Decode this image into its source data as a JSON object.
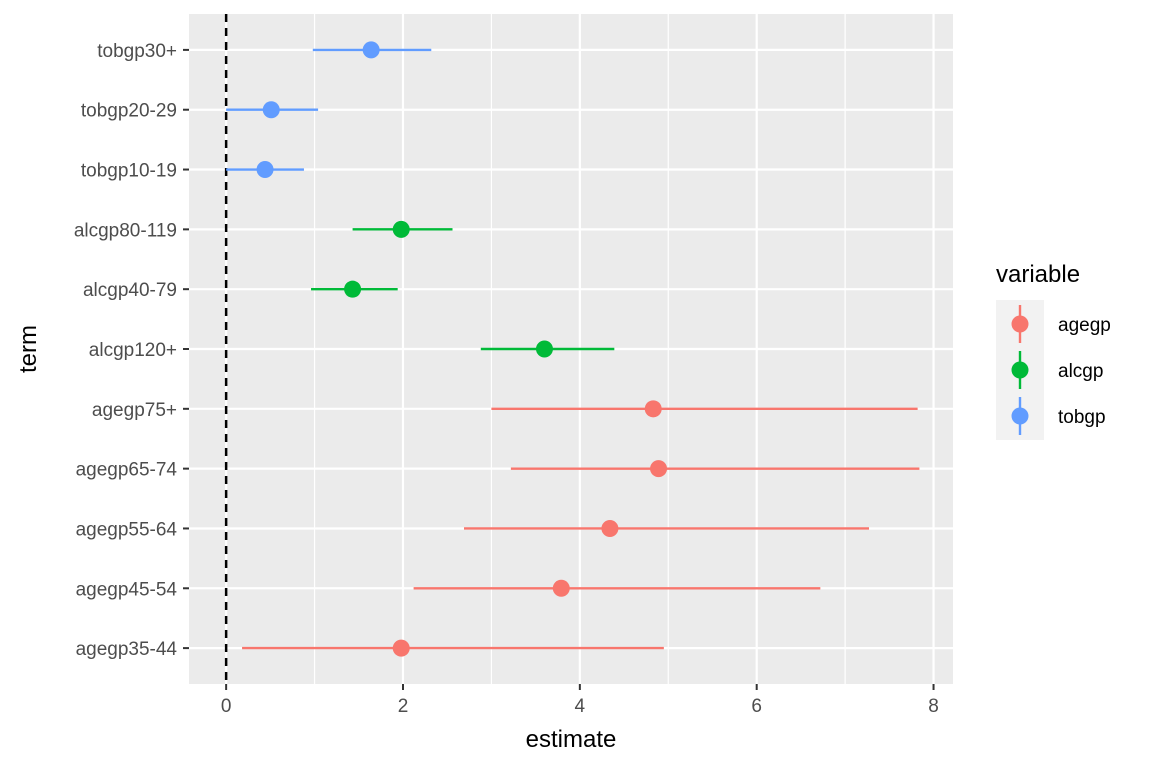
{
  "chart_data": {
    "type": "scatter",
    "subtype": "point-range (coefficient plot)",
    "xlabel": "estimate",
    "ylabel": "term",
    "xlim": [
      -0.42,
      8.22
    ],
    "x_ticks": [
      "0",
      "2",
      "4",
      "6",
      "8"
    ],
    "x_tick_values": [
      0,
      2,
      4,
      6,
      8
    ],
    "reference_line": {
      "x": 0,
      "style": "dashed",
      "color": "#000000"
    },
    "grid": true,
    "legend": {
      "title": "variable",
      "position": "right"
    },
    "colors": {
      "agegp": "#F8766D",
      "alcgp": "#00BA38",
      "tobgp": "#619CFF",
      "panel": "#EBEBEB",
      "grid": "#FFFFFF"
    },
    "terms": [
      "agegp35-44",
      "agegp45-54",
      "agegp55-64",
      "agegp65-74",
      "agegp75+",
      "alcgp120+",
      "alcgp40-79",
      "alcgp80-119",
      "tobgp10-19",
      "tobgp20-29",
      "tobgp30+"
    ],
    "series": [
      {
        "name": "agegp",
        "points": [
          {
            "term": "agegp35-44",
            "estimate": 1.98,
            "low": 0.18,
            "high": 4.95
          },
          {
            "term": "agegp45-54",
            "estimate": 3.79,
            "low": 2.12,
            "high": 6.72
          },
          {
            "term": "agegp55-64",
            "estimate": 4.34,
            "low": 2.69,
            "high": 7.27
          },
          {
            "term": "agegp65-74",
            "estimate": 4.89,
            "low": 3.22,
            "high": 7.84
          },
          {
            "term": "agegp75+",
            "estimate": 4.83,
            "low": 3.0,
            "high": 7.82
          }
        ]
      },
      {
        "name": "alcgp",
        "points": [
          {
            "term": "alcgp120+",
            "estimate": 3.6,
            "low": 2.88,
            "high": 4.39
          },
          {
            "term": "alcgp40-79",
            "estimate": 1.43,
            "low": 0.96,
            "high": 1.94
          },
          {
            "term": "alcgp80-119",
            "estimate": 1.98,
            "low": 1.43,
            "high": 2.56
          }
        ]
      },
      {
        "name": "tobgp",
        "points": [
          {
            "term": "tobgp10-19",
            "estimate": 0.44,
            "low": 0.0,
            "high": 0.88
          },
          {
            "term": "tobgp20-29",
            "estimate": 0.51,
            "low": 0.0,
            "high": 1.04
          },
          {
            "term": "tobgp30+",
            "estimate": 1.64,
            "low": 0.98,
            "high": 2.32
          }
        ]
      }
    ]
  }
}
